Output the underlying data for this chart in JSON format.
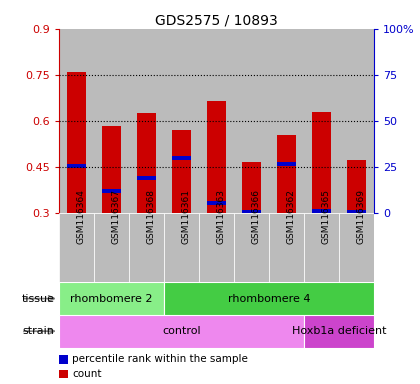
{
  "title": "GDS2575 / 10893",
  "samples": [
    "GSM116364",
    "GSM116367",
    "GSM116368",
    "GSM116361",
    "GSM116363",
    "GSM116366",
    "GSM116362",
    "GSM116365",
    "GSM116369"
  ],
  "red_bar_tops": [
    0.76,
    0.585,
    0.625,
    0.572,
    0.665,
    0.468,
    0.555,
    0.628,
    0.472
  ],
  "blue_markers": [
    0.452,
    0.373,
    0.415,
    0.478,
    0.332,
    0.303,
    0.46,
    0.307,
    0.304
  ],
  "bar_bottom": 0.3,
  "ylim_left": [
    0.3,
    0.9
  ],
  "ylim_right": [
    0,
    100
  ],
  "yticks_left": [
    0.3,
    0.45,
    0.6,
    0.75,
    0.9
  ],
  "ytick_labels_left": [
    "0.3",
    "0.45",
    "0.6",
    "0.75",
    "0.9"
  ],
  "yticks_right": [
    0,
    25,
    50,
    75,
    100
  ],
  "ytick_labels_right": [
    "0",
    "25",
    "50",
    "75",
    "100%"
  ],
  "tissue_groups": [
    {
      "label": "rhombomere 2",
      "start": 0,
      "end": 3,
      "color": "#88ee88"
    },
    {
      "label": "rhombomere 4",
      "start": 3,
      "end": 9,
      "color": "#44cc44"
    }
  ],
  "strain_groups": [
    {
      "label": "control",
      "start": 0,
      "end": 7,
      "color": "#ee88ee"
    },
    {
      "label": "Hoxb1a deficient",
      "start": 7,
      "end": 9,
      "color": "#cc44cc"
    }
  ],
  "tissue_label": "tissue",
  "strain_label": "strain",
  "legend_items": [
    {
      "color": "#cc0000",
      "label": "count"
    },
    {
      "color": "#0000cc",
      "label": "percentile rank within the sample"
    }
  ],
  "bar_color": "#cc0000",
  "blue_color": "#0000cc",
  "bar_width": 0.55,
  "bg_color": "#ffffff",
  "plot_bg_color": "#ffffff",
  "col_bg_color": "#bbbbbb",
  "left_tick_color": "#cc0000",
  "right_tick_color": "#0000cc"
}
